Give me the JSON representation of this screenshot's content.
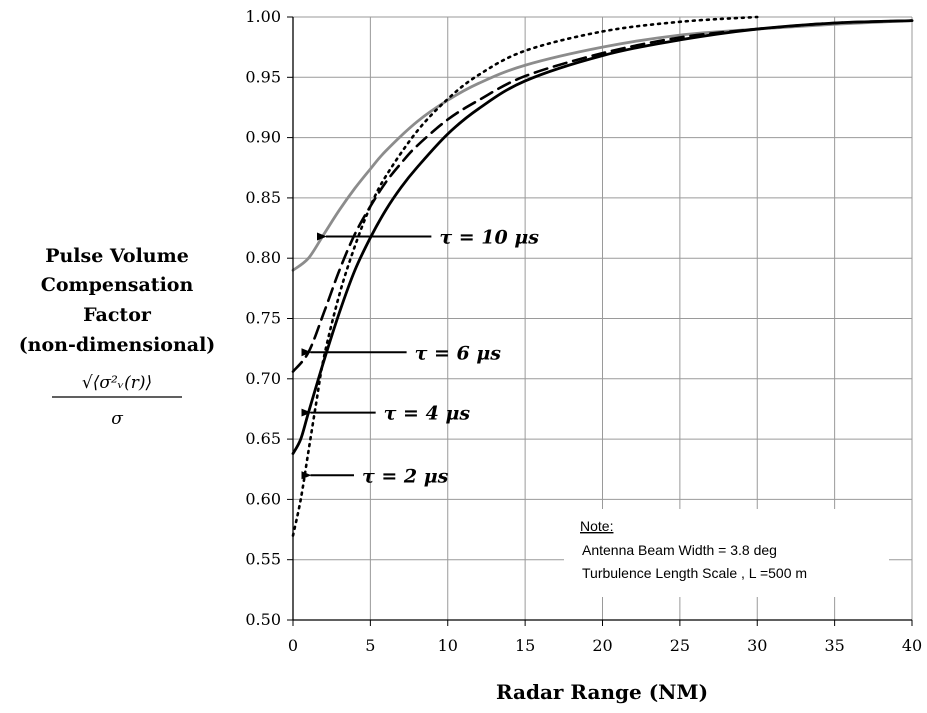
{
  "chart_data": {
    "type": "line",
    "xlabel": "Radar Range (NM)",
    "ylabel": [
      "Pulse Volume",
      "Compensation",
      "Factor",
      "(non-dimensional)"
    ],
    "ylabel_formula": {
      "numerator": "√⟨σ²ᵥ(r)⟩",
      "denominator": "σ"
    },
    "xlim": [
      0,
      40
    ],
    "ylim": [
      0.5,
      1.0
    ],
    "xticks": [
      "0",
      "5",
      "10",
      "15",
      "20",
      "25",
      "30",
      "35",
      "40"
    ],
    "yticks": [
      "0.50",
      "0.55",
      "0.60",
      "0.65",
      "0.70",
      "0.75",
      "0.80",
      "0.85",
      "0.90",
      "0.95",
      "1.00"
    ],
    "grid": true,
    "series": [
      {
        "name": "τ = 10 μs",
        "color": "#8c8c8c",
        "style": "solid",
        "x": [
          0,
          1,
          2,
          3,
          4,
          5,
          6,
          8,
          10,
          12,
          15,
          20,
          25,
          30,
          35,
          40
        ],
        "y": [
          0.79,
          0.8,
          0.82,
          0.84,
          0.858,
          0.874,
          0.889,
          0.913,
          0.931,
          0.945,
          0.96,
          0.975,
          0.985,
          0.99,
          0.994,
          0.997
        ]
      },
      {
        "name": "τ = 6 μs",
        "color": "#000000",
        "style": "dashed",
        "x": [
          0,
          1,
          2,
          3,
          4,
          5,
          6,
          7,
          8,
          10,
          12,
          15,
          20,
          25,
          30,
          35,
          40
        ],
        "y": [
          0.706,
          0.722,
          0.755,
          0.79,
          0.82,
          0.843,
          0.863,
          0.879,
          0.893,
          0.915,
          0.931,
          0.951,
          0.97,
          0.983,
          0.99,
          0.995,
          0.997
        ]
      },
      {
        "name": "τ = 4 μs",
        "color": "#000000",
        "style": "solid",
        "x": [
          0,
          0.5,
          1,
          2,
          3,
          4,
          5,
          6,
          7,
          8,
          10,
          12,
          15,
          20,
          25,
          30,
          35,
          40
        ],
        "y": [
          0.638,
          0.65,
          0.672,
          0.715,
          0.755,
          0.79,
          0.817,
          0.84,
          0.859,
          0.875,
          0.903,
          0.924,
          0.947,
          0.968,
          0.981,
          0.99,
          0.995,
          0.997
        ]
      },
      {
        "name": "τ = 2 μs",
        "color": "#000000",
        "style": "dotted",
        "x": [
          0,
          0.5,
          1,
          1.5,
          2,
          3,
          4,
          5,
          6,
          8,
          10,
          12,
          15,
          20,
          25,
          30
        ],
        "y": [
          0.57,
          0.6,
          0.64,
          0.68,
          0.718,
          0.77,
          0.81,
          0.843,
          0.868,
          0.905,
          0.932,
          0.952,
          0.972,
          0.988,
          0.996,
          1.0
        ]
      }
    ],
    "annotations": [
      {
        "text_main": "τ = 10 ",
        "text_unit": "μs",
        "arrow_to": [
          2,
          0.818
        ],
        "text_at": [
          9.2,
          0.818
        ]
      },
      {
        "text_main": "τ = 6 ",
        "text_unit": "μs",
        "arrow_to": [
          1,
          0.722
        ],
        "text_at": [
          7.6,
          0.722
        ]
      },
      {
        "text_main": "τ = 4 ",
        "text_unit": "μs",
        "arrow_to": [
          1,
          0.672
        ],
        "text_at": [
          5.6,
          0.672
        ]
      },
      {
        "text_main": "τ = 2 ",
        "text_unit": "μs",
        "arrow_to": [
          1,
          0.62
        ],
        "text_at": [
          4.2,
          0.62
        ]
      }
    ],
    "note": {
      "title": "Note:",
      "lines": [
        "Antenna Beam Width = 3.8 deg",
        "Turbulence Length Scale , L =500 m"
      ]
    }
  }
}
